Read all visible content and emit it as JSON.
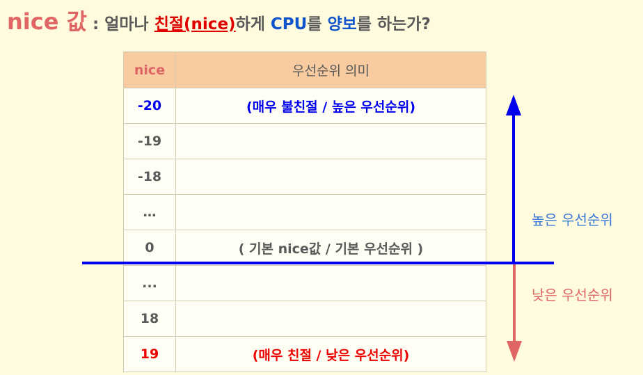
{
  "title": {
    "nice_word": "nice 값",
    "colon_text": " : 얼마나 ",
    "kind_word": "친절(nice)",
    "middle_text": "하게 ",
    "cpu_word": "CPU",
    "reul1": "를 ",
    "yield_word": "양보",
    "ending": "를 하는가?"
  },
  "table": {
    "headers": [
      "nice",
      "우선순위 의미"
    ],
    "rows": [
      {
        "nice": "-20",
        "meaning": "(매우 불친절 / 높은 우선순위)",
        "style": "blue"
      },
      {
        "nice": "-19",
        "meaning": "",
        "style": "gray"
      },
      {
        "nice": "-18",
        "meaning": "",
        "style": "gray"
      },
      {
        "nice": "…",
        "meaning": "",
        "style": "gray"
      },
      {
        "nice": "0",
        "meaning": "( 기본 nice값 /  기본 우선순위 )",
        "style": "gray"
      },
      {
        "nice": "...",
        "meaning": "",
        "style": "gray"
      },
      {
        "nice": "18",
        "meaning": "",
        "style": "gray"
      },
      {
        "nice": "19",
        "meaning": "(매우 친절 / 낮은 우선순위)",
        "style": "red"
      }
    ]
  },
  "arrows": {
    "high_label": "높은 우선순위",
    "low_label": "낮은 우선순위",
    "high_color": "#0000EE",
    "low_color": "#E06666"
  }
}
